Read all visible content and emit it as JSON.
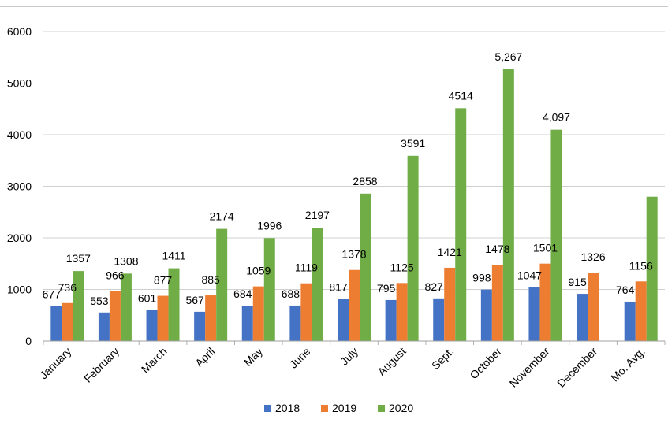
{
  "chart_data": {
    "type": "bar",
    "title": "",
    "xlabel": "",
    "ylabel": "",
    "ylim": [
      0,
      6000
    ],
    "yticks": [
      "0",
      "1000",
      "2000",
      "3000",
      "4000",
      "5000",
      "6000"
    ],
    "grid": true,
    "legend_position": "bottom",
    "categories": [
      "January",
      "February",
      "March",
      "April",
      "May",
      "June",
      "July",
      "August",
      "Sept.",
      "October",
      "November",
      "December",
      "Mo. Avg."
    ],
    "series": [
      {
        "name": "2018",
        "color": "#4472c4",
        "values": [
          677,
          553,
          601,
          567,
          684,
          688,
          817,
          795,
          827,
          998,
          1047,
          915,
          764
        ],
        "labels": [
          "677",
          "553",
          "601",
          "567",
          "684",
          "688",
          "817",
          "795",
          "827",
          "998",
          "1047",
          "915",
          "764"
        ]
      },
      {
        "name": "2019",
        "color": "#ed7d31",
        "values": [
          736,
          966,
          877,
          885,
          1059,
          1119,
          1378,
          1125,
          1421,
          1478,
          1501,
          1326,
          1156
        ],
        "labels": [
          "736",
          "966",
          "877",
          "885",
          "1059",
          "1119",
          "1378",
          "1125",
          "1421",
          "1478",
          "1501",
          "1326",
          "1156"
        ]
      },
      {
        "name": "2020",
        "color": "#70ad47",
        "values": [
          1357,
          1308,
          1411,
          2174,
          1996,
          2197,
          2858,
          3591,
          4514,
          5267,
          4097,
          null,
          2798
        ],
        "labels": [
          "1357",
          "1308",
          "1411",
          "2174",
          "1996",
          "2197",
          "2858",
          "3591",
          "4514",
          "5,267",
          "4,097",
          "",
          ""
        ]
      }
    ]
  }
}
